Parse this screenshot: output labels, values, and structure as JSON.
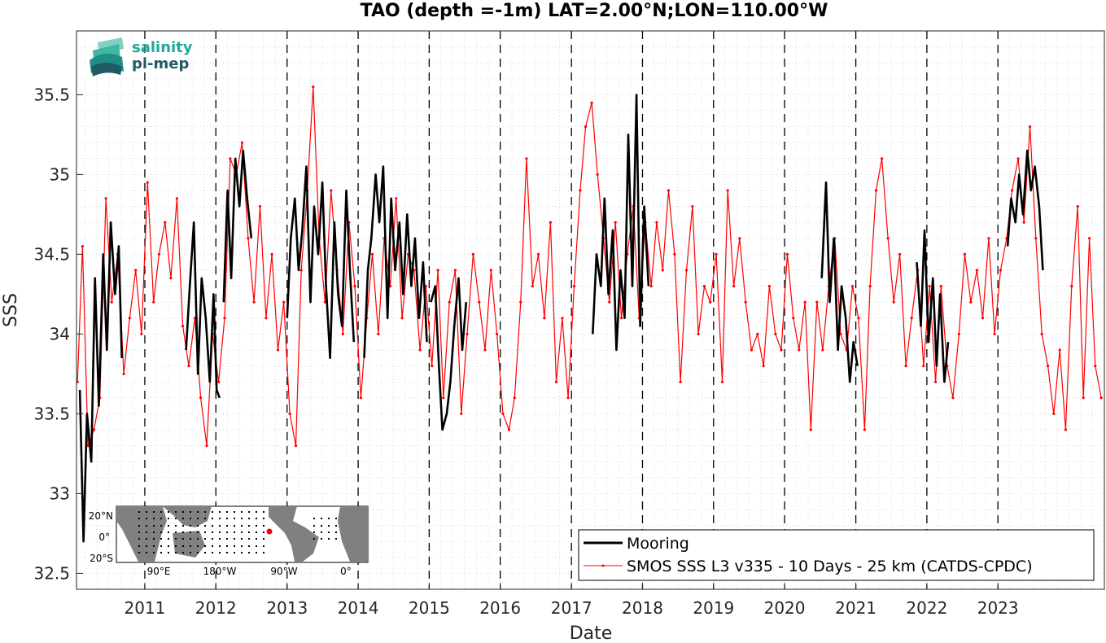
{
  "logo": {
    "line1": "salinity",
    "line2": "pi-mep",
    "colors": {
      "teal": "#1fa99b",
      "dark": "#1e5b63"
    }
  },
  "inset_map": {
    "xticks": [
      "90°E",
      "180°W",
      "90°W",
      "0°"
    ],
    "yticks": [
      "20°N",
      "0°",
      "20°S"
    ],
    "marker_color": "#ff0000"
  },
  "colors": {
    "mooring": "#000000",
    "smos": "#ff0000",
    "grid": "#d9d9d9",
    "vline": "#000000"
  },
  "chart_data": {
    "type": "line",
    "title": "TAO (depth =-1m) LAT=2.00°N;LON=110.00°W",
    "xlabel": "Date",
    "ylabel": "SSS",
    "xlim": [
      "2010-01-15",
      "2024-07-01"
    ],
    "ylim": [
      32.4,
      35.9
    ],
    "yticks": [
      32.5,
      33,
      33.5,
      34,
      34.5,
      35,
      35.5
    ],
    "ytick_labels": [
      "32.5",
      "33",
      "33.5",
      "34",
      "34.5",
      "35",
      "35.5"
    ],
    "xticks": [
      "2011-01-01",
      "2012-01-01",
      "2013-01-01",
      "2014-01-01",
      "2015-01-01",
      "2016-01-01",
      "2017-01-01",
      "2018-01-01",
      "2019-01-01",
      "2020-01-01",
      "2021-01-01",
      "2022-01-01",
      "2023-01-01"
    ],
    "xtick_labels": [
      "2011",
      "2012",
      "2013",
      "2014",
      "2015",
      "2016",
      "2017",
      "2018",
      "2019",
      "2020",
      "2021",
      "2022",
      "2023"
    ],
    "year_lines": [
      "2011-01-01",
      "2012-01-01",
      "2013-01-01",
      "2014-01-01",
      "2015-01-01",
      "2016-01-01",
      "2017-01-01",
      "2018-01-01",
      "2019-01-01",
      "2020-01-01",
      "2021-01-01",
      "2022-01-01",
      "2023-01-01"
    ],
    "grid": "on (dotted minor)",
    "legend_position": "bottom-right",
    "series": [
      {
        "name": "Mooring",
        "color": "#000000",
        "segments": [
          {
            "x": [
              "2010-02-01",
              "2010-02-20",
              "2010-03-10",
              "2010-04-01",
              "2010-04-20",
              "2010-05-10",
              "2010-06-01",
              "2010-06-20",
              "2010-07-10",
              "2010-08-01",
              "2010-08-20",
              "2010-09-05"
            ],
            "y": [
              33.65,
              32.7,
              33.5,
              33.2,
              34.35,
              33.55,
              34.5,
              33.9,
              34.7,
              34.25,
              34.55,
              33.85
            ]
          },
          {
            "x": [
              "2011-08-01",
              "2011-08-20",
              "2011-09-10",
              "2011-10-01",
              "2011-10-20",
              "2011-11-10",
              "2011-12-01",
              "2011-12-20",
              "2012-01-05",
              "2012-01-20"
            ],
            "y": [
              33.9,
              34.3,
              34.7,
              33.75,
              34.35,
              34.1,
              33.7,
              34.25,
              33.65,
              33.6
            ]
          },
          {
            "x": [
              "2012-02-10",
              "2012-03-01",
              "2012-03-20",
              "2012-04-10",
              "2012-05-01",
              "2012-05-20",
              "2012-06-10",
              "2012-07-01"
            ],
            "y": [
              34.2,
              34.9,
              34.35,
              35.1,
              34.8,
              35.15,
              34.85,
              34.6
            ]
          },
          {
            "x": [
              "2013-01-01",
              "2013-01-20",
              "2013-02-10",
              "2013-03-01",
              "2013-03-20",
              "2013-04-10",
              "2013-05-01",
              "2013-05-20",
              "2013-06-10",
              "2013-07-01",
              "2013-07-20",
              "2013-08-10",
              "2013-09-01",
              "2013-09-20",
              "2013-10-10",
              "2013-11-01",
              "2013-11-20",
              "2013-12-10"
            ],
            "y": [
              34.1,
              34.6,
              34.85,
              34.4,
              34.65,
              35.05,
              34.2,
              34.8,
              34.5,
              34.95,
              34.3,
              33.85,
              34.7,
              34.25,
              34.05,
              34.9,
              34.4,
              33.95
            ]
          },
          {
            "x": [
              "2014-02-01",
              "2014-02-20",
              "2014-03-10",
              "2014-04-01",
              "2014-04-20",
              "2014-05-10",
              "2014-06-01",
              "2014-06-20",
              "2014-07-10",
              "2014-08-01",
              "2014-08-20",
              "2014-09-10",
              "2014-10-01",
              "2014-10-20",
              "2014-11-10",
              "2014-12-01",
              "2014-12-20"
            ],
            "y": [
              33.85,
              34.4,
              34.6,
              35.0,
              34.7,
              35.05,
              34.1,
              34.85,
              34.4,
              34.7,
              34.25,
              34.75,
              34.3,
              34.6,
              34.1,
              34.45,
              33.95
            ]
          },
          {
            "x": [
              "2015-01-10",
              "2015-02-01",
              "2015-02-20",
              "2015-03-10",
              "2015-04-01",
              "2015-04-20",
              "2015-05-10",
              "2015-06-01",
              "2015-06-20",
              "2015-07-10"
            ],
            "y": [
              34.2,
              34.3,
              33.8,
              33.4,
              33.5,
              33.7,
              34.05,
              34.35,
              33.9,
              34.2
            ]
          },
          {
            "x": [
              "2017-04-20",
              "2017-05-10",
              "2017-06-01",
              "2017-06-20",
              "2017-07-10",
              "2017-08-01",
              "2017-08-20",
              "2017-09-10",
              "2017-10-01",
              "2017-10-20",
              "2017-11-10",
              "2017-12-01",
              "2017-12-20",
              "2018-01-10",
              "2018-02-01"
            ],
            "y": [
              34.0,
              34.5,
              34.3,
              34.85,
              34.25,
              34.65,
              33.9,
              34.4,
              34.1,
              35.25,
              34.3,
              35.5,
              34.05,
              34.8,
              34.3
            ]
          },
          {
            "x": [
              "2020-07-10",
              "2020-08-01",
              "2020-08-20",
              "2020-09-10",
              "2020-10-01",
              "2020-10-20",
              "2020-11-10",
              "2020-12-01",
              "2020-12-20",
              "2021-01-10"
            ],
            "y": [
              34.35,
              34.95,
              34.2,
              34.6,
              33.9,
              34.3,
              34.1,
              33.7,
              33.95,
              33.8
            ]
          },
          {
            "x": [
              "2021-11-10",
              "2021-12-01",
              "2021-12-20",
              "2022-01-10",
              "2022-02-01",
              "2022-02-20",
              "2022-03-10",
              "2022-04-01",
              "2022-04-20"
            ],
            "y": [
              34.45,
              34.05,
              34.65,
              33.95,
              34.35,
              33.8,
              34.25,
              33.7,
              33.95
            ]
          },
          {
            "x": [
              "2023-02-20",
              "2023-03-10",
              "2023-04-01",
              "2023-04-20",
              "2023-05-10",
              "2023-06-01",
              "2023-06-20",
              "2023-07-10",
              "2023-08-01",
              "2023-08-20"
            ],
            "y": [
              34.55,
              34.85,
              34.7,
              35.0,
              34.75,
              35.15,
              34.9,
              35.05,
              34.8,
              34.4
            ]
          }
        ]
      },
      {
        "name": "SMOS SSS L3 v335 - 10 Days - 25 km (CATDS-CPDC)",
        "color": "#ff0000",
        "x": [
          "2010-01-20",
          "2010-02-15",
          "2010-03-15",
          "2010-04-15",
          "2010-05-15",
          "2010-06-15",
          "2010-07-15",
          "2010-08-15",
          "2010-09-15",
          "2010-10-15",
          "2010-11-15",
          "2010-12-15",
          "2011-01-15",
          "2011-02-15",
          "2011-03-15",
          "2011-04-15",
          "2011-05-15",
          "2011-06-15",
          "2011-07-15",
          "2011-08-15",
          "2011-09-15",
          "2011-10-15",
          "2011-11-15",
          "2011-12-15",
          "2012-01-15",
          "2012-02-15",
          "2012-03-15",
          "2012-04-15",
          "2012-05-15",
          "2012-06-15",
          "2012-07-15",
          "2012-08-15",
          "2012-09-15",
          "2012-10-15",
          "2012-11-15",
          "2012-12-15",
          "2013-01-15",
          "2013-02-15",
          "2013-03-15",
          "2013-04-15",
          "2013-05-15",
          "2013-06-15",
          "2013-07-15",
          "2013-08-15",
          "2013-09-15",
          "2013-10-15",
          "2013-11-15",
          "2013-12-15",
          "2014-01-15",
          "2014-02-15",
          "2014-03-15",
          "2014-04-15",
          "2014-05-15",
          "2014-06-15",
          "2014-07-15",
          "2014-08-15",
          "2014-09-15",
          "2014-10-15",
          "2014-11-15",
          "2014-12-15",
          "2015-01-15",
          "2015-02-15",
          "2015-03-15",
          "2015-04-15",
          "2015-05-15",
          "2015-06-15",
          "2015-07-15",
          "2015-08-15",
          "2015-09-15",
          "2015-10-15",
          "2015-11-15",
          "2015-12-15",
          "2016-01-15",
          "2016-02-15",
          "2016-03-15",
          "2016-04-15",
          "2016-05-15",
          "2016-06-15",
          "2016-07-15",
          "2016-08-15",
          "2016-09-15",
          "2016-10-15",
          "2016-11-15",
          "2016-12-15",
          "2017-01-15",
          "2017-02-15",
          "2017-03-15",
          "2017-04-15",
          "2017-05-15",
          "2017-06-15",
          "2017-07-15",
          "2017-08-15",
          "2017-09-15",
          "2017-10-15",
          "2017-11-15",
          "2017-12-15",
          "2018-01-15",
          "2018-02-15",
          "2018-03-15",
          "2018-04-15",
          "2018-05-15",
          "2018-06-15",
          "2018-07-15",
          "2018-08-15",
          "2018-09-15",
          "2018-10-15",
          "2018-11-15",
          "2018-12-15",
          "2019-01-15",
          "2019-02-15",
          "2019-03-15",
          "2019-04-15",
          "2019-05-15",
          "2019-06-15",
          "2019-07-15",
          "2019-08-15",
          "2019-09-15",
          "2019-10-15",
          "2019-11-15",
          "2019-12-15",
          "2020-01-15",
          "2020-02-15",
          "2020-03-15",
          "2020-04-15",
          "2020-05-15",
          "2020-06-15",
          "2020-07-15",
          "2020-08-15",
          "2020-09-15",
          "2020-10-15",
          "2020-11-15",
          "2020-12-15",
          "2021-01-15",
          "2021-02-15",
          "2021-03-15",
          "2021-04-15",
          "2021-05-15",
          "2021-06-15",
          "2021-07-15",
          "2021-08-15",
          "2021-09-15",
          "2021-10-15",
          "2021-11-15",
          "2021-12-15",
          "2022-01-15",
          "2022-02-15",
          "2022-03-15",
          "2022-04-15",
          "2022-05-15",
          "2022-06-15",
          "2022-07-15",
          "2022-08-15",
          "2022-09-15",
          "2022-10-15",
          "2022-11-15",
          "2022-12-15",
          "2023-01-15",
          "2023-02-15",
          "2023-03-15",
          "2023-04-15",
          "2023-05-15",
          "2023-06-15",
          "2023-07-15",
          "2023-08-15",
          "2023-09-15",
          "2023-10-15",
          "2023-11-15",
          "2023-12-15",
          "2024-01-15",
          "2024-02-15",
          "2024-03-15",
          "2024-04-15",
          "2024-05-15",
          "2024-06-15"
        ],
        "y": [
          33.7,
          34.55,
          33.3,
          33.4,
          33.6,
          34.85,
          34.2,
          34.5,
          33.75,
          34.1,
          34.4,
          34.0,
          34.95,
          34.2,
          34.5,
          34.7,
          34.35,
          34.85,
          34.05,
          33.8,
          34.1,
          33.6,
          33.3,
          34.0,
          33.7,
          34.1,
          35.1,
          35.0,
          35.2,
          34.6,
          34.2,
          34.8,
          34.1,
          34.5,
          33.9,
          34.2,
          33.5,
          33.3,
          34.4,
          34.9,
          35.55,
          34.6,
          34.2,
          34.9,
          34.4,
          34.0,
          34.7,
          34.3,
          33.6,
          34.1,
          34.5,
          34.0,
          34.6,
          34.3,
          34.85,
          34.1,
          34.5,
          34.4,
          33.9,
          34.3,
          33.8,
          34.4,
          33.6,
          34.2,
          34.4,
          33.5,
          34.0,
          34.5,
          34.2,
          33.9,
          34.4,
          34.0,
          33.5,
          33.4,
          33.6,
          34.2,
          35.1,
          34.3,
          34.5,
          34.1,
          34.7,
          33.7,
          34.1,
          33.6,
          34.3,
          34.9,
          35.3,
          35.45,
          35.0,
          34.6,
          34.2,
          34.7,
          34.1,
          34.5,
          34.8,
          34.1,
          34.7,
          34.3,
          34.7,
          34.4,
          34.9,
          34.5,
          33.7,
          34.4,
          34.8,
          34.0,
          34.3,
          34.2,
          34.5,
          33.7,
          34.9,
          34.3,
          34.6,
          34.2,
          33.9,
          34.0,
          33.8,
          34.3,
          34.0,
          33.9,
          34.5,
          34.1,
          33.9,
          34.2,
          33.4,
          34.2,
          33.9,
          34.3,
          34.6,
          34.0,
          33.9,
          34.3,
          34.1,
          33.4,
          34.3,
          34.9,
          35.1,
          34.6,
          34.2,
          34.5,
          33.8,
          34.1,
          34.4,
          33.8,
          34.3,
          33.7,
          34.3,
          33.8,
          33.6,
          34.0,
          34.5,
          34.2,
          34.4,
          34.1,
          34.6,
          34.0,
          34.4,
          34.6,
          34.9,
          35.1,
          34.7,
          35.3,
          34.6,
          34.0,
          33.8,
          33.5,
          33.9,
          33.4,
          34.3,
          34.8,
          33.6,
          34.6,
          33.8,
          33.6
        ]
      }
    ]
  },
  "legend": {
    "entries": [
      {
        "label": "Mooring",
        "color": "#000000"
      },
      {
        "label": "SMOS SSS L3 v335 - 10 Days - 25 km (CATDS-CPDC)",
        "color": "#ff0000"
      }
    ]
  }
}
